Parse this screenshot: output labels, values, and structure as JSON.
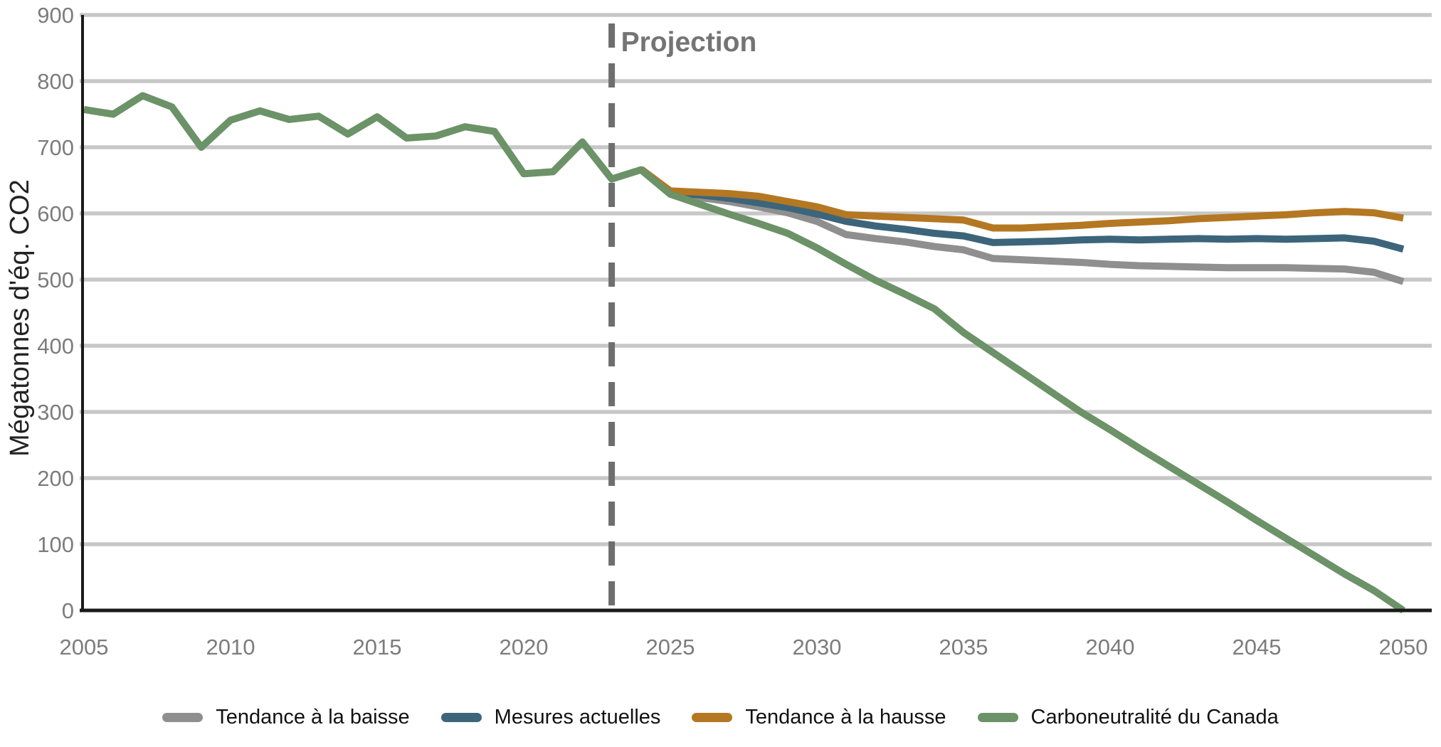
{
  "page": {
    "background": "#ffffff"
  },
  "chart_data": {
    "type": "line",
    "title": "",
    "xlabel": "",
    "ylabel": "Mégatonnes d'éq. CO2",
    "ylim": [
      0,
      900
    ],
    "xlim": [
      2005,
      2050
    ],
    "y_ticks": [
      0,
      100,
      200,
      300,
      400,
      500,
      600,
      700,
      800,
      900
    ],
    "x_ticks": [
      2005,
      2010,
      2015,
      2020,
      2025,
      2030,
      2035,
      2040,
      2045,
      2050
    ],
    "grid": "horizontal-only",
    "gridline_color": "#c7c7c7",
    "axis_color": "#1a1a1a",
    "tick_label_color": "#7c7c7c",
    "legend_position": "bottom",
    "projection_divider": {
      "label": "Projection",
      "year": 2023,
      "line_color": "#6e6e6e",
      "label_color": "#747474",
      "style": "dashed"
    },
    "series": [
      {
        "name": "Tendance à la baisse",
        "color": "#8f8f8f",
        "x_start": 2024,
        "x_step": 1,
        "values": [
          666,
          630,
          624,
          618,
          610,
          601,
          588,
          568,
          562,
          557,
          550,
          545,
          532,
          530,
          528,
          526,
          523,
          521,
          520,
          519,
          518,
          518,
          518,
          517,
          516,
          511,
          497
        ]
      },
      {
        "name": "Mesures actuelles",
        "color": "#3c657b",
        "x_start": 2024,
        "x_step": 1,
        "values": [
          666,
          632,
          628,
          623,
          616,
          609,
          599,
          588,
          581,
          576,
          570,
          566,
          556,
          557,
          558,
          560,
          561,
          560,
          561,
          562,
          561,
          562,
          561,
          562,
          563,
          558,
          546
        ]
      },
      {
        "name": "Tendance à la hausse",
        "color": "#b47722",
        "x_start": 2024,
        "x_step": 1,
        "values": [
          667,
          634,
          632,
          630,
          626,
          618,
          610,
          598,
          596,
          594,
          592,
          590,
          578,
          578,
          580,
          582,
          585,
          587,
          589,
          592,
          594,
          596,
          598,
          601,
          603,
          601,
          593
        ]
      },
      {
        "name": "Carboneutralité du Canada",
        "color": "#6c9268",
        "x_start": 2005,
        "x_step": 1,
        "values": [
          757,
          750,
          778,
          761,
          700,
          741,
          755,
          742,
          747,
          720,
          746,
          714,
          717,
          731,
          724,
          660,
          663,
          708,
          652,
          666,
          629,
          614,
          599,
          585,
          570,
          548,
          523,
          499,
          478,
          456,
          420,
          390,
          360,
          330,
          300,
          273,
          245,
          218,
          191,
          164,
          136,
          109,
          82,
          55,
          30,
          0
        ]
      }
    ]
  }
}
